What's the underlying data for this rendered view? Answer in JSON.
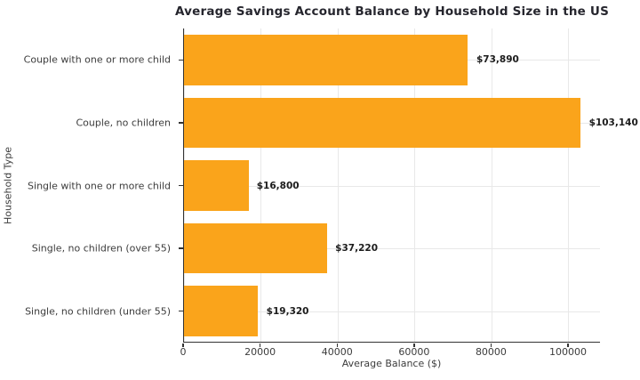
{
  "chart_data": {
    "type": "bar",
    "orientation": "horizontal",
    "title": "Average Savings Account Balance by Household Size in the US",
    "xlabel": "Average Balance ($)",
    "ylabel": "Household Type",
    "categories": [
      "Couple with one or more child",
      "Couple, no children",
      "Single with one or more child",
      "Single, no children (over 55)",
      "Single, no children (under 55)"
    ],
    "values": [
      73890,
      103140,
      16800,
      37220,
      19320
    ],
    "value_labels": [
      "$73,890",
      "$103,140",
      "$16,800",
      "$37,220",
      "$19,320"
    ],
    "xlim": [
      0,
      108300
    ],
    "xticks": [
      0,
      20000,
      40000,
      60000,
      80000,
      100000
    ],
    "xtick_labels": [
      "0",
      "20000",
      "40000",
      "60000",
      "80000",
      "100000"
    ],
    "grid": true,
    "legend": false,
    "bar_color": "#FAA41B",
    "grid_color": "#e8e8e8",
    "spine_color": "#333333",
    "title_color": "#26262e",
    "label_color": "#3c3c3c",
    "value_label_color": "#1c1c1c"
  }
}
